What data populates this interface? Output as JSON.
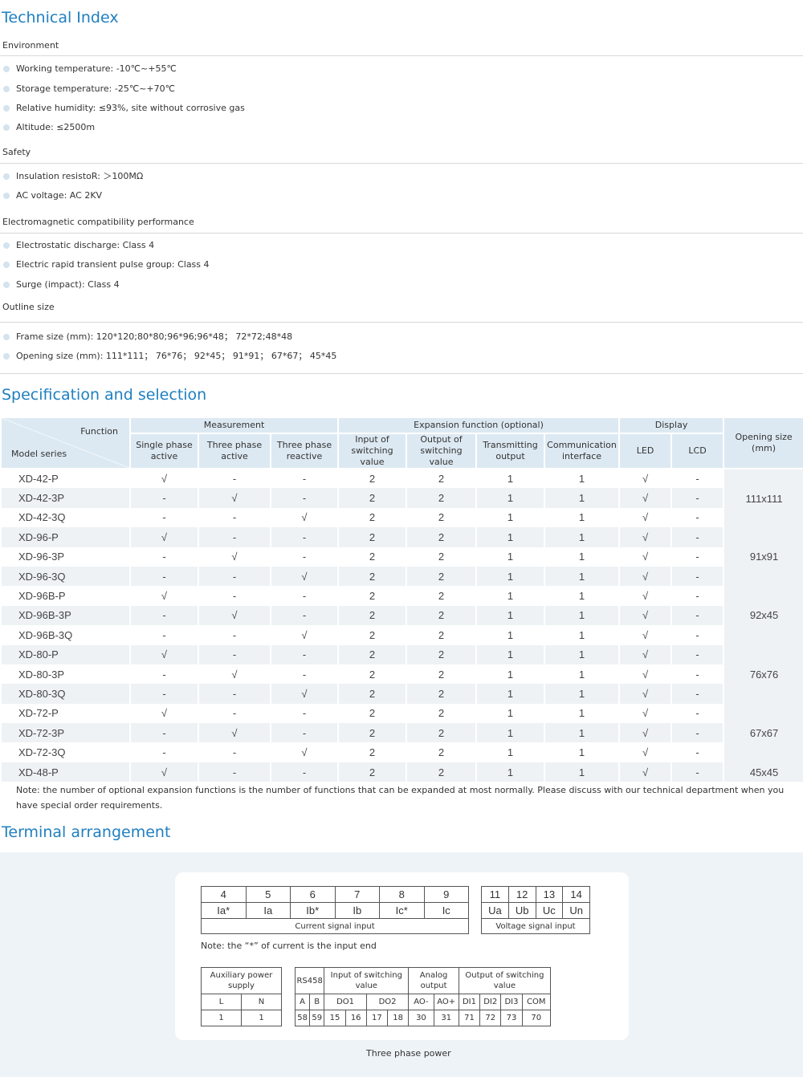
{
  "technical_index": {
    "title": "Technical Index",
    "environment": {
      "heading": "Environment",
      "items": [
        "Working temperature: -10℃~+55℃",
        "Storage temperature: -25℃~+70℃",
        "Relative humidity: ≤93%, site without corrosive gas",
        "Altitude: ≤2500m"
      ]
    },
    "safety": {
      "heading": "Safety",
      "items": [
        "Insulation resistoR: ＞100MΩ",
        "AC voltage: AC 2KV"
      ]
    },
    "emc": {
      "heading": "Electromagnetic compatibility performance",
      "items": [
        "Electrostatic discharge: Class 4",
        "Electric rapid transient pulse group: Class 4",
        "Surge (impact): Class 4"
      ]
    },
    "outline": {
      "heading": "Outline size",
      "items": [
        "Frame size (mm): 120*120;80*80;96*96;96*48； 72*72;48*48",
        "Opening size (mm): 111*111； 76*76； 92*45； 91*91； 67*67； 45*45"
      ]
    }
  },
  "spec": {
    "title": "Specification and selection",
    "header": {
      "function": "Function",
      "model_series": "Model series",
      "measurement": "Measurement",
      "expansion": "Expansion function (optional)",
      "display": "Display",
      "opening": "Opening size\n(mm)",
      "single_phase": "Single phase\nactive",
      "three_phase_active": "Three phase\nactive",
      "three_phase_reactive": "Three phase\nreactive",
      "input_switching": "Input of\nswitching value",
      "output_switching": "Output of\nswitching value",
      "transmitting": "Transmitting\noutput",
      "communication": "Communication\ninterface",
      "led": "LED",
      "lcd": "LCD"
    },
    "rows": [
      [
        "XD-42-P",
        "√",
        "-",
        "-",
        "2",
        "2",
        "1",
        "1",
        "√",
        "-"
      ],
      [
        "XD-42-3P",
        "-",
        "√",
        "-",
        "2",
        "2",
        "1",
        "1",
        "√",
        "-"
      ],
      [
        "XD-42-3Q",
        "-",
        "-",
        "√",
        "2",
        "2",
        "1",
        "1",
        "√",
        "-"
      ],
      [
        "XD-96-P",
        "√",
        "-",
        "-",
        "2",
        "2",
        "1",
        "1",
        "√",
        "-"
      ],
      [
        "XD-96-3P",
        "-",
        "√",
        "-",
        "2",
        "2",
        "1",
        "1",
        "√",
        "-"
      ],
      [
        "XD-96-3Q",
        "-",
        "-",
        "√",
        "2",
        "2",
        "1",
        "1",
        "√",
        "-"
      ],
      [
        "XD-96B-P",
        "√",
        "-",
        "-",
        "2",
        "2",
        "1",
        "1",
        "√",
        "-"
      ],
      [
        "XD-96B-3P",
        "-",
        "√",
        "-",
        "2",
        "2",
        "1",
        "1",
        "√",
        "-"
      ],
      [
        "XD-96B-3Q",
        "-",
        "-",
        "√",
        "2",
        "2",
        "1",
        "1",
        "√",
        "-"
      ],
      [
        "XD-80-P",
        "√",
        "-",
        "-",
        "2",
        "2",
        "1",
        "1",
        "√",
        "-"
      ],
      [
        "XD-80-3P",
        "-",
        "√",
        "-",
        "2",
        "2",
        "1",
        "1",
        "√",
        "-"
      ],
      [
        "XD-80-3Q",
        "-",
        "-",
        "√",
        "2",
        "2",
        "1",
        "1",
        "√",
        "-"
      ],
      [
        "XD-72-P",
        "√",
        "-",
        "-",
        "2",
        "2",
        "1",
        "1",
        "√",
        "-"
      ],
      [
        "XD-72-3P",
        "-",
        "√",
        "-",
        "2",
        "2",
        "1",
        "1",
        "√",
        "-"
      ],
      [
        "XD-72-3Q",
        "-",
        "-",
        "√",
        "2",
        "2",
        "1",
        "1",
        "√",
        "-"
      ],
      [
        "XD-48-P",
        "√",
        "-",
        "-",
        "2",
        "2",
        "1",
        "1",
        "√",
        "-"
      ]
    ],
    "opening_sizes": [
      "111x111",
      "91x91",
      "92x45",
      "76x76",
      "67x67",
      "45x45"
    ],
    "note": "Note: the number of optional expansion functions is the number of functions that can be expanded at most normally. Please discuss with our technical department when you have special order requirements."
  },
  "terminal": {
    "title": "Terminal arrangement",
    "current": {
      "numbers": [
        "4",
        "5",
        "6",
        "7",
        "8",
        "9"
      ],
      "labels": [
        "Ia*",
        "Ia",
        "Ib*",
        "Ib",
        "Ic*",
        "Ic"
      ],
      "caption": "Current signal input"
    },
    "voltage": {
      "numbers": [
        "11",
        "12",
        "13",
        "14"
      ],
      "labels": [
        "Ua",
        "Ub",
        "Uc",
        "Un"
      ],
      "caption": "Voltage signal input"
    },
    "input_note": "Note: the “*” of current is the input end",
    "aux": {
      "heading": "Auxiliary power supply",
      "labels": [
        "L",
        "N"
      ],
      "numbers": [
        "1",
        "1"
      ]
    },
    "io": {
      "rs458": "RS458",
      "input_heading": "Input of switching value",
      "analog_heading": "Analog output",
      "output_heading": "Output of switching value",
      "labels": [
        "A",
        "B",
        "DO1",
        "DO2",
        "AO-",
        "AO+",
        "DI1",
        "DI2",
        "DI3",
        "COM"
      ],
      "numbers": [
        "58",
        "59",
        "15",
        "16",
        "17",
        "18",
        "30",
        "31",
        "71",
        "72",
        "73",
        "70"
      ]
    },
    "caption": "Three phase power"
  }
}
